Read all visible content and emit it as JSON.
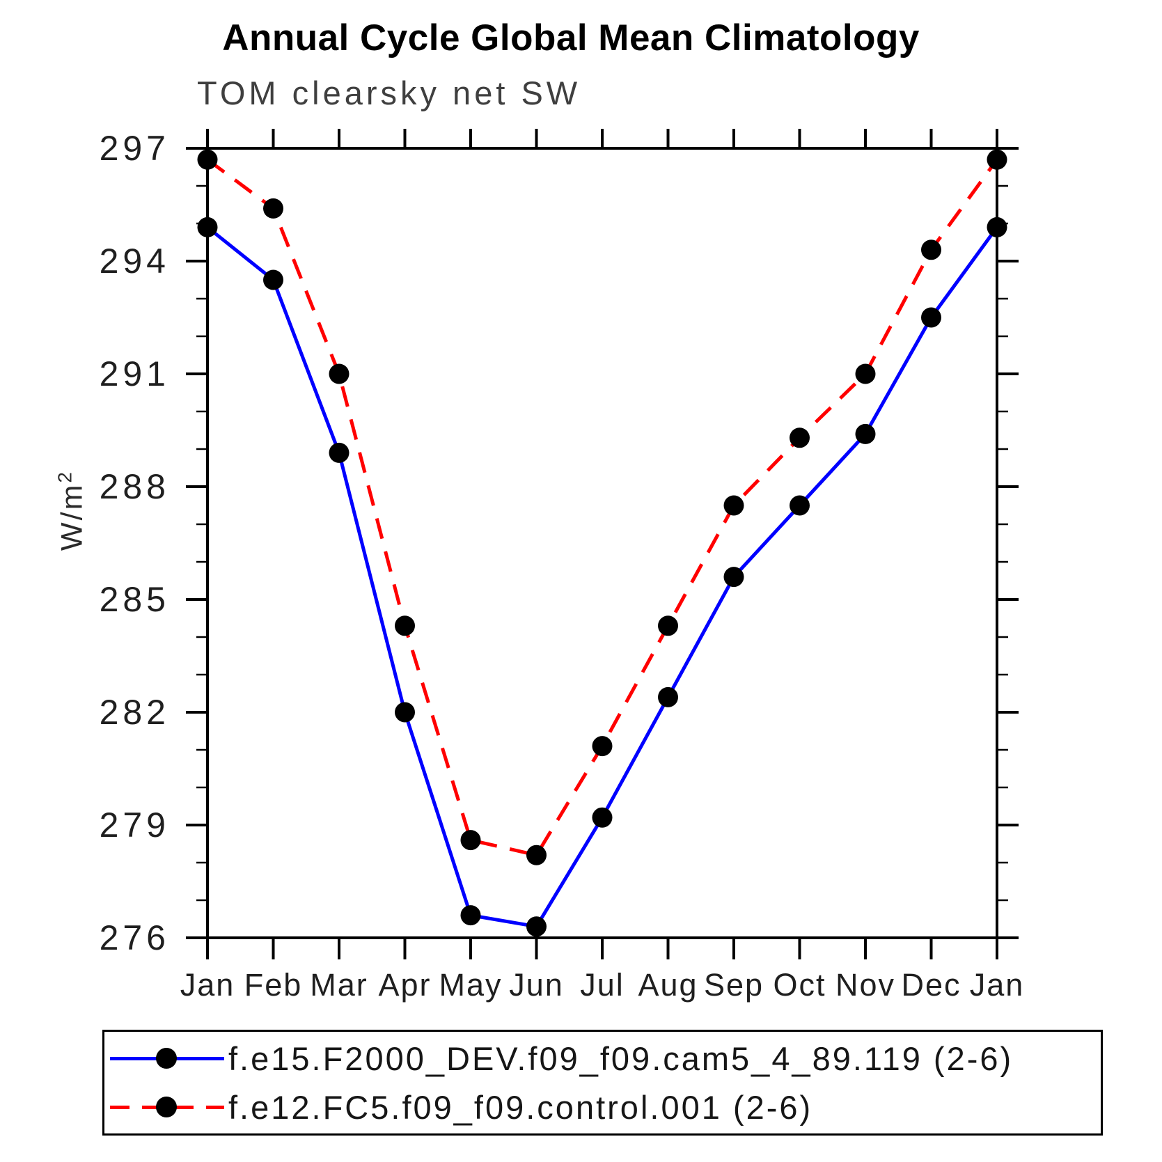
{
  "title": "Annual Cycle Global Mean Climatology",
  "subtitle": "TOM clearsky net SW",
  "chart_data": {
    "type": "line",
    "title": "Annual Cycle Global Mean Climatology",
    "subtitle": "TOM clearsky net SW",
    "xlabel": "",
    "ylabel_base": "W/m",
    "ylabel_sup": "2",
    "x_categories": [
      "Jan",
      "Feb",
      "Mar",
      "Apr",
      "May",
      "Jun",
      "Jul",
      "Aug",
      "Sep",
      "Oct",
      "Nov",
      "Dec",
      "Jan"
    ],
    "y_axis": {
      "min": 276,
      "max": 297,
      "major_step": 3,
      "minor_step": 1,
      "major_tick_labels": [
        "276",
        "279",
        "282",
        "285",
        "288",
        "291",
        "294",
        "297"
      ]
    },
    "grid": false,
    "legend_position": "bottom",
    "series": [
      {
        "name": "f.e15.F2000_DEV.f09_f09.cam5_4_89.119 (2-6)",
        "color": "#0000ff",
        "line_style": "solid",
        "marker": "filled-circle",
        "marker_color": "#000000",
        "values": [
          294.9,
          293.5,
          288.9,
          282.0,
          276.6,
          276.3,
          279.2,
          282.4,
          285.6,
          287.5,
          289.4,
          292.5,
          294.9
        ]
      },
      {
        "name": "f.e12.FC5.f09_f09.control.001 (2-6)",
        "color": "#ff0000",
        "line_style": "dashed",
        "marker": "filled-circle",
        "marker_color": "#000000",
        "values": [
          296.7,
          295.4,
          291.0,
          284.3,
          278.6,
          278.2,
          281.1,
          284.3,
          287.5,
          289.3,
          291.0,
          294.3,
          296.7
        ]
      }
    ]
  }
}
